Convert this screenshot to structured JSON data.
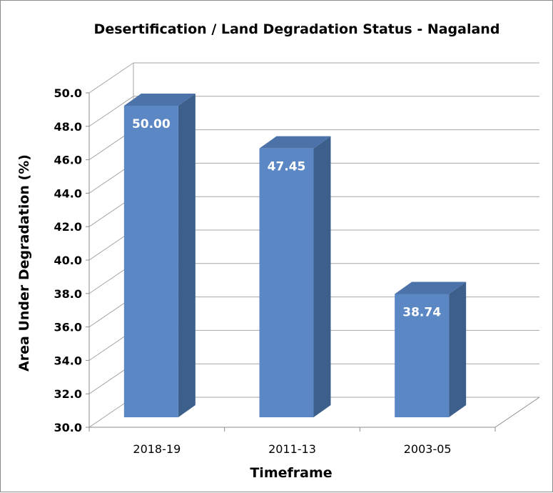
{
  "chart_data": {
    "type": "bar",
    "title": "Desertification / Land  Degradation Status - Nagaland",
    "xlabel": "Timeframe",
    "ylabel": "Area Under Degradation (%)",
    "categories": [
      "2018-19",
      "2011-13",
      "2003-05"
    ],
    "values": [
      50.0,
      47.45,
      38.74
    ],
    "data_labels": [
      "50.00",
      "47.45",
      "38.74"
    ],
    "ylim": [
      30,
      50
    ],
    "yticks": [
      "30.0",
      "32.0",
      "34.0",
      "36.0",
      "38.0",
      "40.0",
      "42.0",
      "44.0",
      "46.0",
      "48.0",
      "50.0"
    ],
    "grid": true,
    "legend": "none",
    "style": "3d-column",
    "colors": {
      "bar_front": "#5b87c4",
      "bar_side": "#3c5f8c",
      "bar_top": "#4b72a9",
      "grid": "#a6a6a6",
      "label": "#ffffff"
    }
  }
}
